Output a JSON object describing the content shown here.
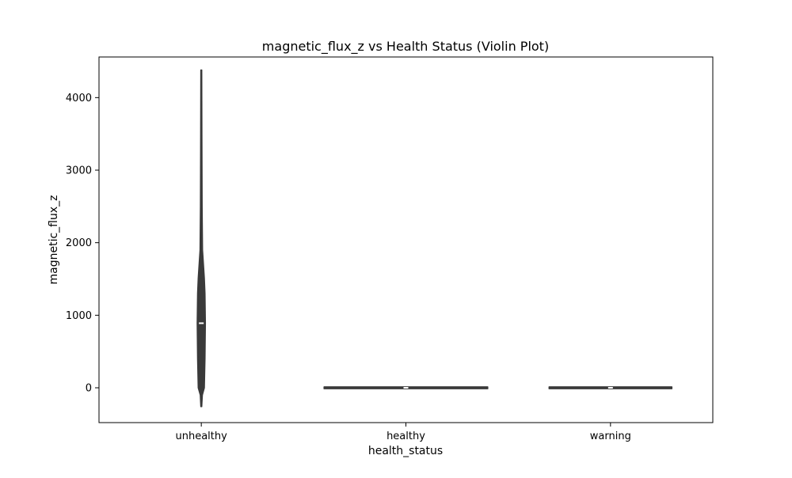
{
  "chart_data": {
    "type": "violin",
    "title": "magnetic_flux_z vs Health Status (Violin Plot)",
    "xlabel": "health_status",
    "ylabel": "magnetic_flux_z",
    "categories": [
      "unhealthy",
      "healthy",
      "warning"
    ],
    "ylim": [
      -480,
      4560
    ],
    "yticks": [
      0,
      1000,
      2000,
      3000,
      4000
    ],
    "grid": false,
    "legend": "none",
    "colors": {
      "violin_fill": "#3a3a3a",
      "violin_edge": "#3a3a3a",
      "box": "#3a3a3a",
      "median": "#ffffff",
      "axes": "#000000"
    },
    "violins": [
      {
        "category": "unhealthy",
        "min": -260,
        "q1": 0,
        "median": 890,
        "q3": 1510,
        "max": 4380,
        "density": [
          [
            -260,
            0.004
          ],
          [
            -100,
            0.01
          ],
          [
            0,
            0.03
          ],
          [
            400,
            0.036
          ],
          [
            890,
            0.04
          ],
          [
            1300,
            0.036
          ],
          [
            1510,
            0.03
          ],
          [
            1900,
            0.012
          ],
          [
            2500,
            0.008
          ],
          [
            3500,
            0.006
          ],
          [
            4380,
            0.004
          ]
        ]
      },
      {
        "category": "healthy",
        "min": 0,
        "q1": 0,
        "median": 0,
        "q3": 0,
        "max": 0,
        "density": [
          [
            -12,
            0.8
          ],
          [
            0,
            0.8
          ],
          [
            12,
            0.8
          ]
        ]
      },
      {
        "category": "warning",
        "min": 0,
        "q1": 0,
        "median": 0,
        "q3": 0,
        "max": 0,
        "density": [
          [
            -12,
            0.6
          ],
          [
            0,
            0.6
          ],
          [
            12,
            0.6
          ]
        ]
      }
    ]
  }
}
